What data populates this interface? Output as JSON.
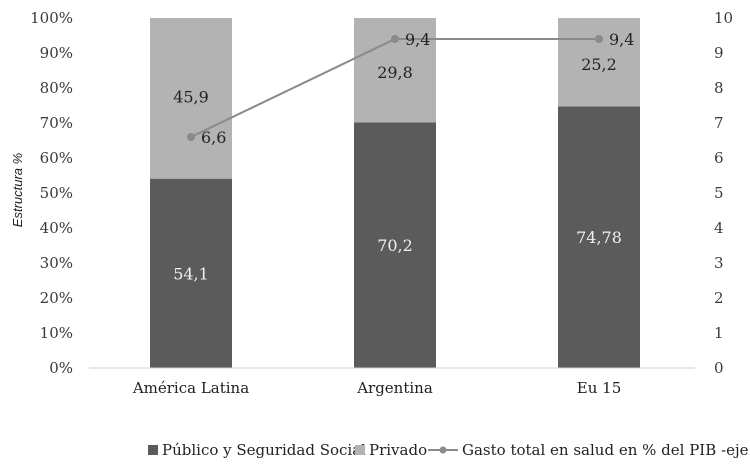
{
  "chart_data": {
    "type": "bar",
    "stacked": true,
    "ylabel": "Estructura %",
    "categories": [
      "América Latina",
      "Argentina",
      "Eu 15"
    ],
    "series": [
      {
        "name": "Público y Seguridad Social",
        "values": [
          54.1,
          70.2,
          74.78
        ],
        "labels": [
          "54,1",
          "70,2",
          "74,78"
        ],
        "color": "#5b5b5b",
        "label_color": "#f0f0f0"
      },
      {
        "name": "Privado",
        "values": [
          45.9,
          29.8,
          25.2
        ],
        "labels": [
          "45,9",
          "29,8",
          "25,2"
        ],
        "color": "#b3b3b3",
        "label_color": "#222222"
      }
    ],
    "line_series": {
      "name": "Gasto total en salud en % del PIB -eje der-",
      "values": [
        6.6,
        9.4,
        9.4
      ],
      "labels": [
        "6,6",
        "9,4",
        "9,4"
      ],
      "color": "#8a8a8a",
      "axis": "right"
    },
    "y_left": {
      "min": 0,
      "max": 100,
      "ticks": [
        "0%",
        "10%",
        "20%",
        "30%",
        "40%",
        "50%",
        "60%",
        "70%",
        "80%",
        "90%",
        "100%"
      ]
    },
    "y_right": {
      "min": 0,
      "max": 10,
      "ticks": [
        "0",
        "1",
        "2",
        "3",
        "4",
        "5",
        "6",
        "7",
        "8",
        "9",
        "10"
      ]
    },
    "legend_position": "bottom",
    "grid": false
  }
}
